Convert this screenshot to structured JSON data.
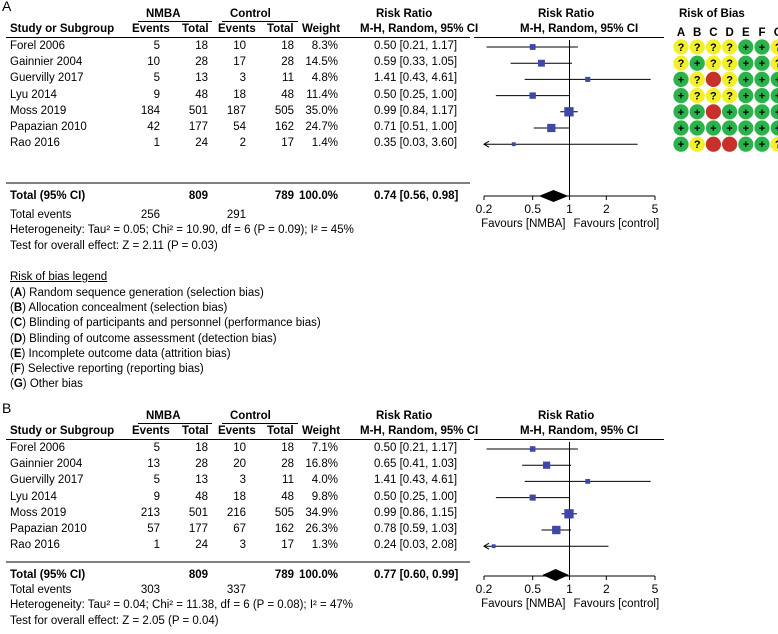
{
  "bias_legend": {
    "title": "Risk of bias legend",
    "items": [
      {
        "letter": "A",
        "text": "Random sequence generation (selection bias)"
      },
      {
        "letter": "B",
        "text": "Allocation concealment (selection bias)"
      },
      {
        "letter": "C",
        "text": "Blinding of participants and personnel (performance bias)"
      },
      {
        "letter": "D",
        "text": "Blinding of outcome assessment (detection bias)"
      },
      {
        "letter": "E",
        "text": "Incomplete outcome data (attrition bias)"
      },
      {
        "letter": "F",
        "text": "Selective reporting (reporting bias)"
      },
      {
        "letter": "G",
        "text": "Other bias"
      }
    ]
  },
  "chart_data": [
    {
      "type": "forest",
      "panel": "A",
      "group1": "NMBA",
      "group2": "Control",
      "col_headers": {
        "study": "Study or Subgroup",
        "events": "Events",
        "total": "Total",
        "weight": "Weight",
        "rr": "Risk Ratio",
        "rr_sub": "M-H, Random, 95% CI"
      },
      "plot_title": "Risk Ratio",
      "plot_sub": "M-H, Random, 95% CI",
      "bias_title": "Risk of Bias",
      "bias_cols": [
        "A",
        "B",
        "C",
        "D",
        "E",
        "F",
        "G"
      ],
      "studies": [
        {
          "name": "Forel 2006",
          "e1": "5",
          "n1": "18",
          "e2": "10",
          "n2": "18",
          "weight": "8.3%",
          "ci": "0.50 [0.21, 1.17]",
          "rr": 0.5,
          "lo": 0.21,
          "hi": 1.17,
          "w": 8.3,
          "bias": [
            "?",
            "?",
            "?",
            "?",
            "+",
            "+",
            "?"
          ]
        },
        {
          "name": "Gainnier 2004",
          "e1": "10",
          "n1": "28",
          "e2": "17",
          "n2": "28",
          "weight": "14.5%",
          "ci": "0.59 [0.33, 1.05]",
          "rr": 0.59,
          "lo": 0.33,
          "hi": 1.05,
          "w": 14.5,
          "bias": [
            "?",
            "+",
            "?",
            "?",
            "+",
            "+",
            "?"
          ]
        },
        {
          "name": "Guervilly 2017",
          "e1": "5",
          "n1": "13",
          "e2": "3",
          "n2": "11",
          "weight": "4.8%",
          "ci": "1.41 [0.43, 4.61]",
          "rr": 1.41,
          "lo": 0.43,
          "hi": 4.61,
          "w": 4.8,
          "bias": [
            "+",
            "?",
            "-",
            "?",
            "+",
            "+",
            "+"
          ]
        },
        {
          "name": "Lyu 2014",
          "e1": "9",
          "n1": "48",
          "e2": "18",
          "n2": "48",
          "weight": "11.4%",
          "ci": "0.50 [0.25, 1.00]",
          "rr": 0.5,
          "lo": 0.25,
          "hi": 1.0,
          "w": 11.4,
          "bias": [
            "+",
            "?",
            "?",
            "?",
            "+",
            "+",
            "+"
          ]
        },
        {
          "name": "Moss 2019",
          "e1": "184",
          "n1": "501",
          "e2": "187",
          "n2": "505",
          "weight": "35.0%",
          "ci": "0.99 [0.84, 1.17]",
          "rr": 0.99,
          "lo": 0.84,
          "hi": 1.17,
          "w": 35.0,
          "bias": [
            "+",
            "+",
            "-",
            "+",
            "+",
            "+",
            "+"
          ]
        },
        {
          "name": "Papazian 2010",
          "e1": "42",
          "n1": "177",
          "e2": "54",
          "n2": "162",
          "weight": "24.7%",
          "ci": "0.71 [0.51, 1.00]",
          "rr": 0.71,
          "lo": 0.51,
          "hi": 1.0,
          "w": 24.7,
          "bias": [
            "+",
            "+",
            "+",
            "+",
            "+",
            "+",
            "+"
          ]
        },
        {
          "name": "Rao 2016",
          "e1": "1",
          "n1": "24",
          "e2": "2",
          "n2": "17",
          "weight": "1.4%",
          "ci": "0.35 [0.03, 3.60]",
          "rr": 0.35,
          "lo": 0.03,
          "hi": 3.6,
          "w": 1.4,
          "bias": [
            "+",
            "?",
            "-",
            "-",
            "+",
            "+",
            "?"
          ]
        }
      ],
      "total": {
        "label": "Total (95% CI)",
        "n1": "809",
        "n2": "789",
        "weight": "100.0%",
        "ci": "0.74 [0.56, 0.98]",
        "rr": 0.74,
        "lo": 0.56,
        "hi": 0.98
      },
      "events": {
        "label": "Total events",
        "e1": "256",
        "e2": "291"
      },
      "heterogeneity": "Heterogeneity: Tau² = 0.05; Chi² = 10.90, df = 6 (P = 0.09); I² = 45%",
      "overall": "Test for overall effect: Z = 2.11 (P = 0.03)",
      "axis": {
        "min": 0.2,
        "max": 5,
        "ticks": [
          "0.2",
          "0.5",
          "1",
          "2",
          "5"
        ],
        "tick_values": [
          0.2,
          0.5,
          1,
          2,
          5
        ]
      },
      "favours": [
        "Favours [NMBA]",
        "Favours [control]"
      ]
    },
    {
      "type": "forest",
      "panel": "B",
      "group1": "NMBA",
      "group2": "Control",
      "col_headers": {
        "study": "Study or Subgroup",
        "events": "Events",
        "total": "Total",
        "weight": "Weight",
        "rr": "Risk Ratio",
        "rr_sub": "M-H, Random, 95% CI"
      },
      "plot_title": "Risk Ratio",
      "plot_sub": "M-H, Random, 95% CI",
      "studies": [
        {
          "name": "Forel 2006",
          "e1": "5",
          "n1": "18",
          "e2": "10",
          "n2": "18",
          "weight": "7.1%",
          "ci": "0.50 [0.21, 1.17]",
          "rr": 0.5,
          "lo": 0.21,
          "hi": 1.17,
          "w": 7.1
        },
        {
          "name": "Gainnier 2004",
          "e1": "13",
          "n1": "28",
          "e2": "20",
          "n2": "28",
          "weight": "16.8%",
          "ci": "0.65 [0.41, 1.03]",
          "rr": 0.65,
          "lo": 0.41,
          "hi": 1.03,
          "w": 16.8
        },
        {
          "name": "Guervilly 2017",
          "e1": "5",
          "n1": "13",
          "e2": "3",
          "n2": "11",
          "weight": "4.0%",
          "ci": "1.41 [0.43, 4.61]",
          "rr": 1.41,
          "lo": 0.43,
          "hi": 4.61,
          "w": 4.0
        },
        {
          "name": "Lyu 2014",
          "e1": "9",
          "n1": "48",
          "e2": "18",
          "n2": "48",
          "weight": "9.8%",
          "ci": "0.50 [0.25, 1.00]",
          "rr": 0.5,
          "lo": 0.25,
          "hi": 1.0,
          "w": 9.8
        },
        {
          "name": "Moss 2019",
          "e1": "213",
          "n1": "501",
          "e2": "216",
          "n2": "505",
          "weight": "34.9%",
          "ci": "0.99 [0.86, 1.15]",
          "rr": 0.99,
          "lo": 0.86,
          "hi": 1.15,
          "w": 34.9
        },
        {
          "name": "Papazian 2010",
          "e1": "57",
          "n1": "177",
          "e2": "67",
          "n2": "162",
          "weight": "26.3%",
          "ci": "0.78 [0.59, 1.03]",
          "rr": 0.78,
          "lo": 0.59,
          "hi": 1.03,
          "w": 26.3
        },
        {
          "name": "Rao 2016",
          "e1": "1",
          "n1": "24",
          "e2": "3",
          "n2": "17",
          "weight": "1.3%",
          "ci": "0.24 [0.03, 2.08]",
          "rr": 0.24,
          "lo": 0.03,
          "hi": 2.08,
          "w": 1.3
        }
      ],
      "total": {
        "label": "Total (95% CI)",
        "n1": "809",
        "n2": "789",
        "weight": "100.0%",
        "ci": "0.77 [0.60, 0.99]",
        "rr": 0.77,
        "lo": 0.6,
        "hi": 0.99
      },
      "events": {
        "label": "Total events",
        "e1": "303",
        "e2": "337"
      },
      "heterogeneity": "Heterogeneity: Tau² = 0.04; Chi² = 11.38, df = 6 (P = 0.08); I² = 47%",
      "overall": "Test for overall effect: Z = 2.05 (P = 0.04)",
      "axis": {
        "min": 0.2,
        "max": 5,
        "ticks": [
          "0.2",
          "0.5",
          "1",
          "2",
          "5"
        ],
        "tick_values": [
          0.2,
          0.5,
          1,
          2,
          5
        ]
      },
      "favours": [
        "Favours [NMBA]",
        "Favours [control]"
      ]
    }
  ],
  "colors": {
    "square": "#3f48a8",
    "plus": "#2cb24a",
    "question": "#f2ef2b",
    "minus": "#c7302b"
  }
}
